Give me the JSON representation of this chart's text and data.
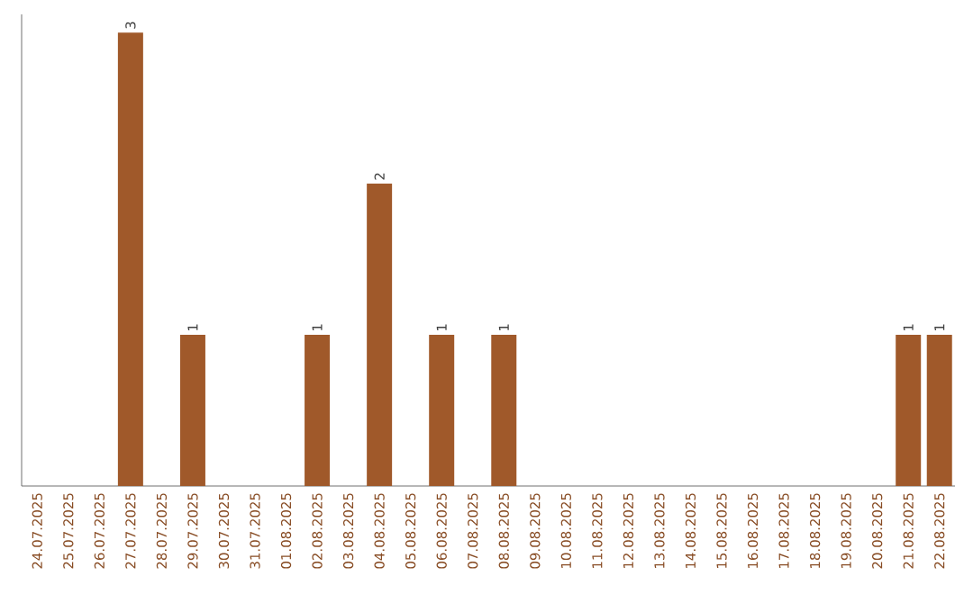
{
  "chart_data": {
    "type": "bar",
    "categories": [
      "24.07.2025",
      "25.07.2025",
      "26.07.2025",
      "27.07.2025",
      "28.07.2025",
      "29.07.2025",
      "30.07.2025",
      "31.07.2025",
      "01.08.2025",
      "02.08.2025",
      "03.08.2025",
      "04.08.2025",
      "05.08.2025",
      "06.08.2025",
      "07.08.2025",
      "08.08.2025",
      "09.08.2025",
      "10.08.2025",
      "11.08.2025",
      "12.08.2025",
      "13.08.2025",
      "14.08.2025",
      "15.08.2025",
      "16.08.2025",
      "17.08.2025",
      "18.08.2025",
      "19.08.2025",
      "20.08.2025",
      "21.08.2025",
      "22.08.2025"
    ],
    "values": [
      0,
      0,
      0,
      3,
      0,
      1,
      0,
      0,
      0,
      1,
      0,
      2,
      0,
      1,
      0,
      1,
      0,
      0,
      0,
      0,
      0,
      0,
      0,
      0,
      0,
      0,
      0,
      0,
      1,
      1
    ],
    "value_labels": [
      null,
      null,
      null,
      "3",
      null,
      "1",
      null,
      null,
      null,
      "1",
      null,
      "2",
      null,
      "1",
      null,
      "1",
      null,
      null,
      null,
      null,
      null,
      null,
      null,
      null,
      null,
      null,
      null,
      null,
      "1",
      "1"
    ],
    "color": "#a0592a"
  }
}
